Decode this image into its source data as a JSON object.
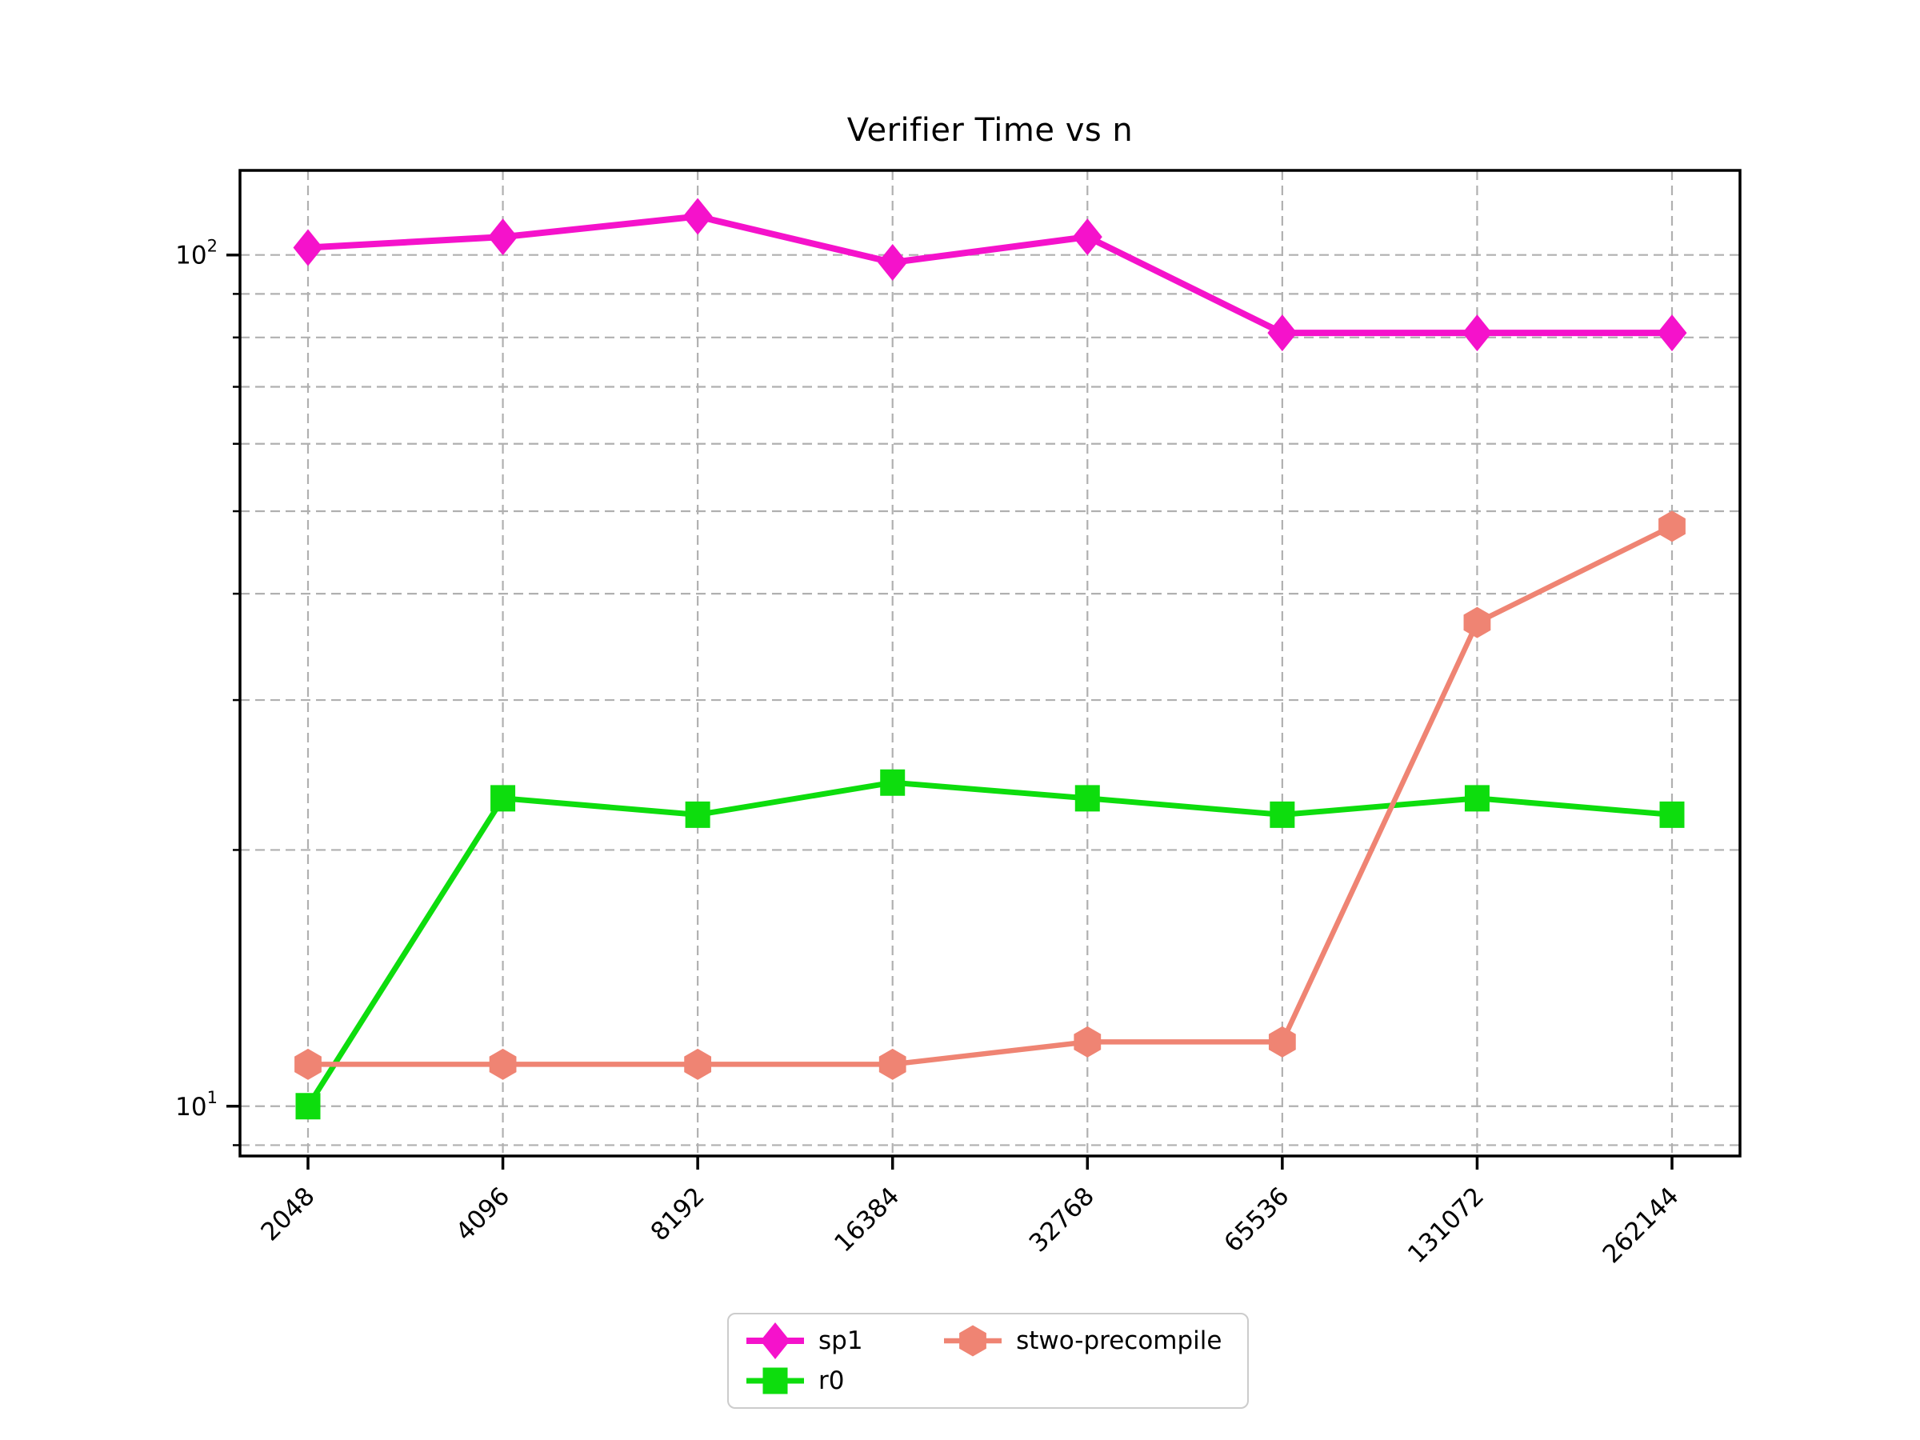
{
  "chart_data": {
    "type": "line",
    "title": "Verifier Time vs n",
    "xlabel": "n",
    "ylabel": "",
    "x_scale": "log2 (powers of two, evenly spaced)",
    "y_scale": "log10",
    "grid": "both major and minor, dashed gray",
    "legend_position": "below axis, centered, 2 columns",
    "categories": [
      "2048",
      "4096",
      "8192",
      "16384",
      "32768",
      "65536",
      "131072",
      "262144"
    ],
    "ylim": [
      8.74,
      125.7
    ],
    "yticks_major": [
      {
        "value": 100,
        "base": "10",
        "sup": "2"
      },
      {
        "value": 10,
        "base": "10",
        "sup": "1"
      }
    ],
    "series": [
      {
        "name": "sp1",
        "color": "#f512cb",
        "marker": "diamond",
        "values": [
          102,
          105,
          111,
          98,
          105,
          81,
          81,
          81
        ]
      },
      {
        "name": "r0",
        "color": "#0ddd0d",
        "marker": "square",
        "values": [
          10,
          23,
          22,
          24,
          23,
          22,
          23,
          22
        ]
      },
      {
        "name": "stwo-precompile",
        "color": "#ef8473",
        "marker": "hexagon",
        "values": [
          11.2,
          11.2,
          11.2,
          11.2,
          11.9,
          11.9,
          37,
          48
        ]
      }
    ]
  },
  "colors": {
    "background": "#ffffff",
    "grid": "#b0b0b0",
    "axis": "#000000",
    "text": "#000000",
    "legend_border": "#cccccc"
  }
}
